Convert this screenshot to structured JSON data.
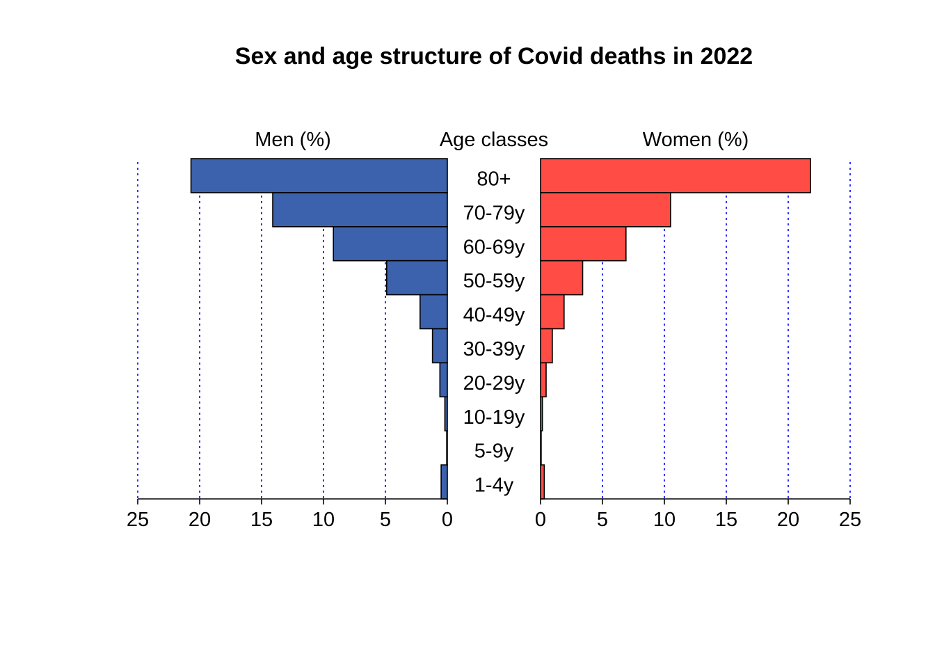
{
  "chart_data": {
    "type": "bar",
    "title": "Sex and age structure of Covid deaths in 2022",
    "left_header": "Men (%)",
    "center_header": "Age classes",
    "right_header": "Women (%)",
    "categories": [
      "80+",
      "70-79y",
      "60-69y",
      "50-59y",
      "40-49y",
      "30-39y",
      "20-29y",
      "10-19y",
      "5-9y",
      "1-4y"
    ],
    "series": [
      {
        "name": "Men (%)",
        "color": "#3D62AD",
        "values": [
          20.7,
          14.1,
          9.2,
          4.9,
          2.2,
          1.2,
          0.6,
          0.2,
          0.05,
          0.5
        ]
      },
      {
        "name": "Women (%)",
        "color": "#FF4D46",
        "values": [
          21.8,
          10.5,
          6.9,
          3.4,
          1.9,
          0.95,
          0.45,
          0.15,
          0.05,
          0.3
        ]
      }
    ],
    "xlim": [
      0,
      25
    ],
    "xticks": [
      "0",
      "5",
      "10",
      "15",
      "20",
      "25"
    ],
    "grid": true,
    "grid_color": "#0000FF"
  }
}
